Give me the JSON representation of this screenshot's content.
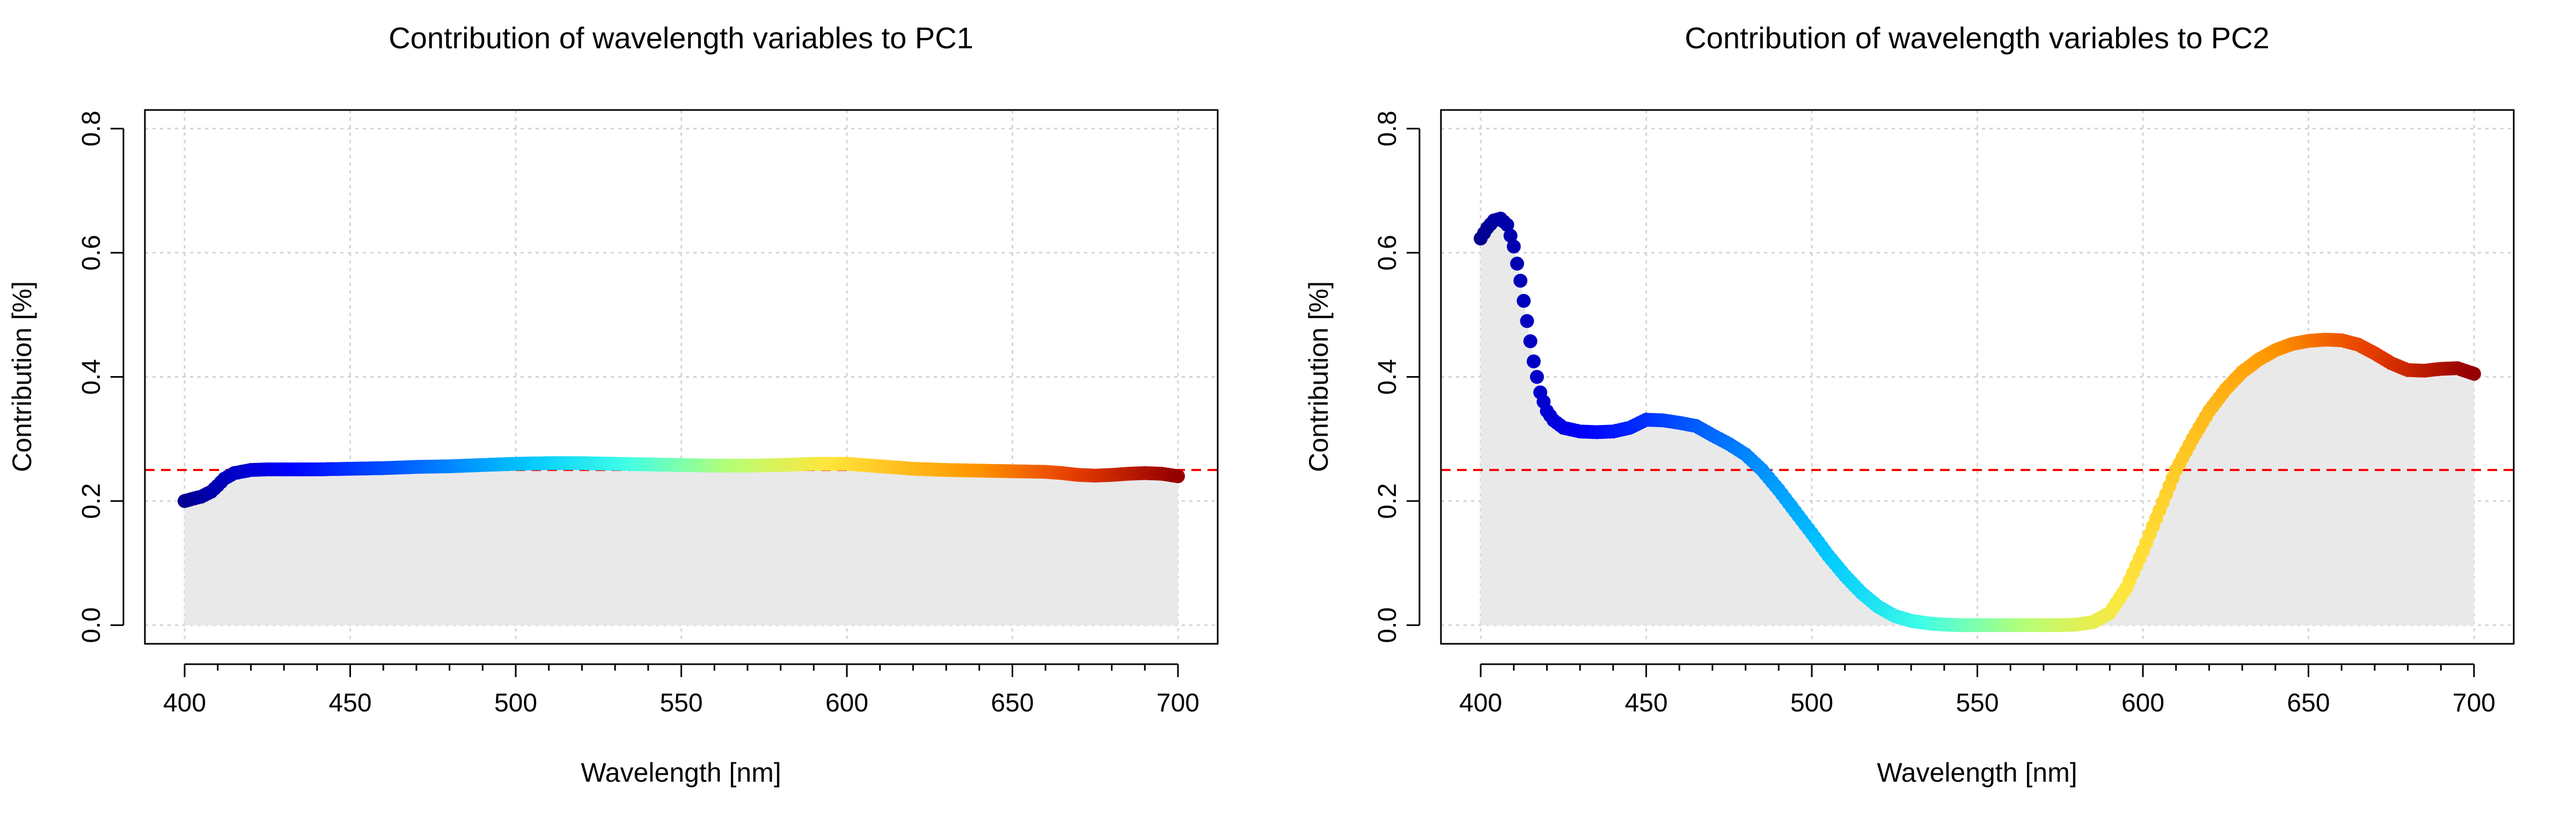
{
  "chart_data": [
    {
      "type": "scatter",
      "title": "Contribution of wavelength variables to PC1",
      "xlabel": "Wavelength [nm]",
      "ylabel": "Contribution [%]",
      "xlim": [
        388,
        712
      ],
      "ylim": [
        -0.03,
        0.83
      ],
      "xticks": [
        400,
        450,
        500,
        550,
        600,
        650,
        700
      ],
      "yticks": [
        0.0,
        0.2,
        0.4,
        0.6,
        0.8
      ],
      "xtick_labels": [
        "400",
        "450",
        "500",
        "550",
        "600",
        "650",
        "700"
      ],
      "ytick_labels": [
        "0.0",
        "0.2",
        "0.4",
        "0.6",
        "0.8"
      ],
      "grid": true,
      "reference_line": {
        "y": 0.25,
        "color": "#ff0000",
        "style": "dashed"
      },
      "fill_color": "#e9e9e9",
      "colormap": "jet",
      "x": [
        400,
        402,
        405,
        408,
        410,
        412,
        415,
        418,
        420,
        425,
        430,
        440,
        450,
        460,
        470,
        480,
        490,
        500,
        510,
        520,
        530,
        540,
        550,
        560,
        570,
        580,
        590,
        600,
        610,
        620,
        630,
        640,
        650,
        660,
        665,
        670,
        675,
        680,
        685,
        690,
        695,
        700
      ],
      "values": [
        0.2,
        0.203,
        0.207,
        0.215,
        0.225,
        0.236,
        0.245,
        0.248,
        0.25,
        0.251,
        0.251,
        0.251,
        0.252,
        0.253,
        0.255,
        0.256,
        0.258,
        0.26,
        0.261,
        0.261,
        0.26,
        0.259,
        0.258,
        0.257,
        0.257,
        0.258,
        0.26,
        0.26,
        0.256,
        0.252,
        0.25,
        0.249,
        0.248,
        0.247,
        0.245,
        0.242,
        0.241,
        0.242,
        0.244,
        0.245,
        0.244,
        0.24
      ]
    },
    {
      "type": "scatter",
      "title": "Contribution of wavelength variables to PC2",
      "xlabel": "Wavelength [nm]",
      "ylabel": "Contribution [%]",
      "xlim": [
        388,
        712
      ],
      "ylim": [
        -0.03,
        0.83
      ],
      "xticks": [
        400,
        450,
        500,
        550,
        600,
        650,
        700
      ],
      "yticks": [
        0.0,
        0.2,
        0.4,
        0.6,
        0.8
      ],
      "xtick_labels": [
        "400",
        "450",
        "500",
        "550",
        "600",
        "650",
        "700"
      ],
      "ytick_labels": [
        "0.0",
        "0.2",
        "0.4",
        "0.6",
        "0.8"
      ],
      "grid": true,
      "reference_line": {
        "y": 0.25,
        "color": "#ff0000",
        "style": "dashed"
      },
      "fill_color": "#e9e9e9",
      "colormap": "jet",
      "x": [
        400,
        402,
        404,
        406,
        408,
        410,
        412,
        414,
        416,
        418,
        420,
        422,
        425,
        430,
        435,
        440,
        445,
        450,
        455,
        460,
        465,
        470,
        475,
        480,
        485,
        490,
        495,
        500,
        505,
        510,
        515,
        520,
        525,
        530,
        535,
        540,
        545,
        550,
        555,
        560,
        565,
        570,
        575,
        580,
        585,
        590,
        595,
        600,
        605,
        610,
        615,
        620,
        625,
        630,
        635,
        640,
        645,
        650,
        655,
        660,
        665,
        670,
        675,
        680,
        685,
        690,
        695,
        700
      ],
      "values": [
        0.623,
        0.64,
        0.652,
        0.655,
        0.645,
        0.61,
        0.555,
        0.49,
        0.425,
        0.375,
        0.345,
        0.33,
        0.318,
        0.312,
        0.311,
        0.312,
        0.318,
        0.331,
        0.33,
        0.326,
        0.321,
        0.306,
        0.292,
        0.275,
        0.25,
        0.218,
        0.183,
        0.148,
        0.112,
        0.08,
        0.052,
        0.03,
        0.015,
        0.007,
        0.003,
        0.001,
        0.0,
        0.0,
        0.0,
        0.0,
        0.0,
        0.0,
        0.0,
        0.001,
        0.005,
        0.02,
        0.06,
        0.12,
        0.185,
        0.25,
        0.3,
        0.345,
        0.38,
        0.408,
        0.428,
        0.443,
        0.453,
        0.458,
        0.46,
        0.459,
        0.452,
        0.438,
        0.422,
        0.411,
        0.41,
        0.413,
        0.414,
        0.405
      ]
    }
  ]
}
